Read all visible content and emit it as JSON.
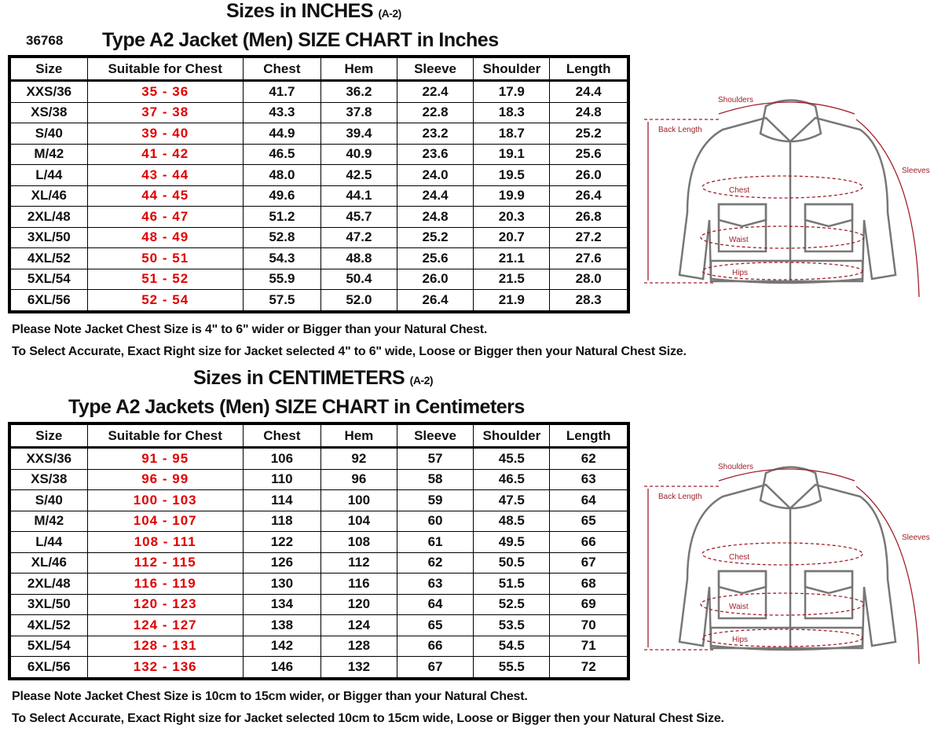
{
  "inches": {
    "heading": "Sizes in INCHES",
    "heading_sub": "(A-2)",
    "code": "36768",
    "title": "Type A2 Jacket (Men)  SIZE CHART  in Inches",
    "columns": [
      "Size",
      "Suitable for Chest",
      "Chest",
      "Hem",
      "Sleeve",
      "Shoulder",
      "Length"
    ],
    "rows": [
      [
        "XXS/36",
        "35  -  36",
        "41.7",
        "36.2",
        "22.4",
        "17.9",
        "24.4"
      ],
      [
        "XS/38",
        "37  -  38",
        "43.3",
        "37.8",
        "22.8",
        "18.3",
        "24.8"
      ],
      [
        "S/40",
        "39  -  40",
        "44.9",
        "39.4",
        "23.2",
        "18.7",
        "25.2"
      ],
      [
        "M/42",
        "41  -  42",
        "46.5",
        "40.9",
        "23.6",
        "19.1",
        "25.6"
      ],
      [
        "L/44",
        "43  -  44",
        "48.0",
        "42.5",
        "24.0",
        "19.5",
        "26.0"
      ],
      [
        "XL/46",
        "44  -  45",
        "49.6",
        "44.1",
        "24.4",
        "19.9",
        "26.4"
      ],
      [
        "2XL/48",
        "46  -  47",
        "51.2",
        "45.7",
        "24.8",
        "20.3",
        "26.8"
      ],
      [
        "3XL/50",
        "48  -  49",
        "52.8",
        "47.2",
        "25.2",
        "20.7",
        "27.2"
      ],
      [
        "4XL/52",
        "50  -  51",
        "54.3",
        "48.8",
        "25.6",
        "21.1",
        "27.6"
      ],
      [
        "5XL/54",
        "51  -  52",
        "55.9",
        "50.4",
        "26.0",
        "21.5",
        "28.0"
      ],
      [
        "6XL/56",
        "52  -  54",
        "57.5",
        "52.0",
        "26.4",
        "21.9",
        "28.3"
      ]
    ],
    "note1": "Please Note Jacket Chest Size is 4\" to 6\" wider or Bigger than your Natural Chest.",
    "note2": "To Select Accurate, Exact Right size for Jacket selected 4\" to 6\" wide, Loose or Bigger then your Natural Chest Size."
  },
  "cm": {
    "heading": "Sizes in CENTIMETERS",
    "heading_sub": "(A-2)",
    "title": "Type A2 Jackets (Men)  SIZE CHART  in Centimeters",
    "columns": [
      "Size",
      "Suitable for Chest",
      "Chest",
      "Hem",
      "Sleeve",
      "Shoulder",
      "Length"
    ],
    "rows": [
      [
        "XXS/36",
        "91  -  95",
        "106",
        "92",
        "57",
        "45.5",
        "62"
      ],
      [
        "XS/38",
        "96  -  99",
        "110",
        "96",
        "58",
        "46.5",
        "63"
      ],
      [
        "S/40",
        "100  -  103",
        "114",
        "100",
        "59",
        "47.5",
        "64"
      ],
      [
        "M/42",
        "104  -  107",
        "118",
        "104",
        "60",
        "48.5",
        "65"
      ],
      [
        "L/44",
        "108  -  111",
        "122",
        "108",
        "61",
        "49.5",
        "66"
      ],
      [
        "XL/46",
        "112  -  115",
        "126",
        "112",
        "62",
        "50.5",
        "67"
      ],
      [
        "2XL/48",
        "116  -  119",
        "130",
        "116",
        "63",
        "51.5",
        "68"
      ],
      [
        "3XL/50",
        "120  -  123",
        "134",
        "120",
        "64",
        "52.5",
        "69"
      ],
      [
        "4XL/52",
        "124  -  127",
        "138",
        "124",
        "65",
        "53.5",
        "70"
      ],
      [
        "5XL/54",
        "128  -  131",
        "142",
        "128",
        "66",
        "54.5",
        "71"
      ],
      [
        "6XL/56",
        "132  -  136",
        "146",
        "132",
        "67",
        "55.5",
        "72"
      ]
    ],
    "note1": "Please Note Jacket Chest Size is 10cm to 15cm wider, or Bigger than your Natural Chest.",
    "note2": "To Select Accurate, Exact Right size for Jacket selected 10cm to 15cm wide, Loose or Bigger then your Natural Chest Size."
  },
  "diagram": {
    "shoulders": "Shoulders",
    "back_length": "Back Length",
    "sleeves": "Sleeves",
    "chest": "Chest",
    "waist": "Waist",
    "hips": "Hips"
  },
  "colors": {
    "range_text": "#e00000",
    "measure_line": "#a0202a"
  }
}
